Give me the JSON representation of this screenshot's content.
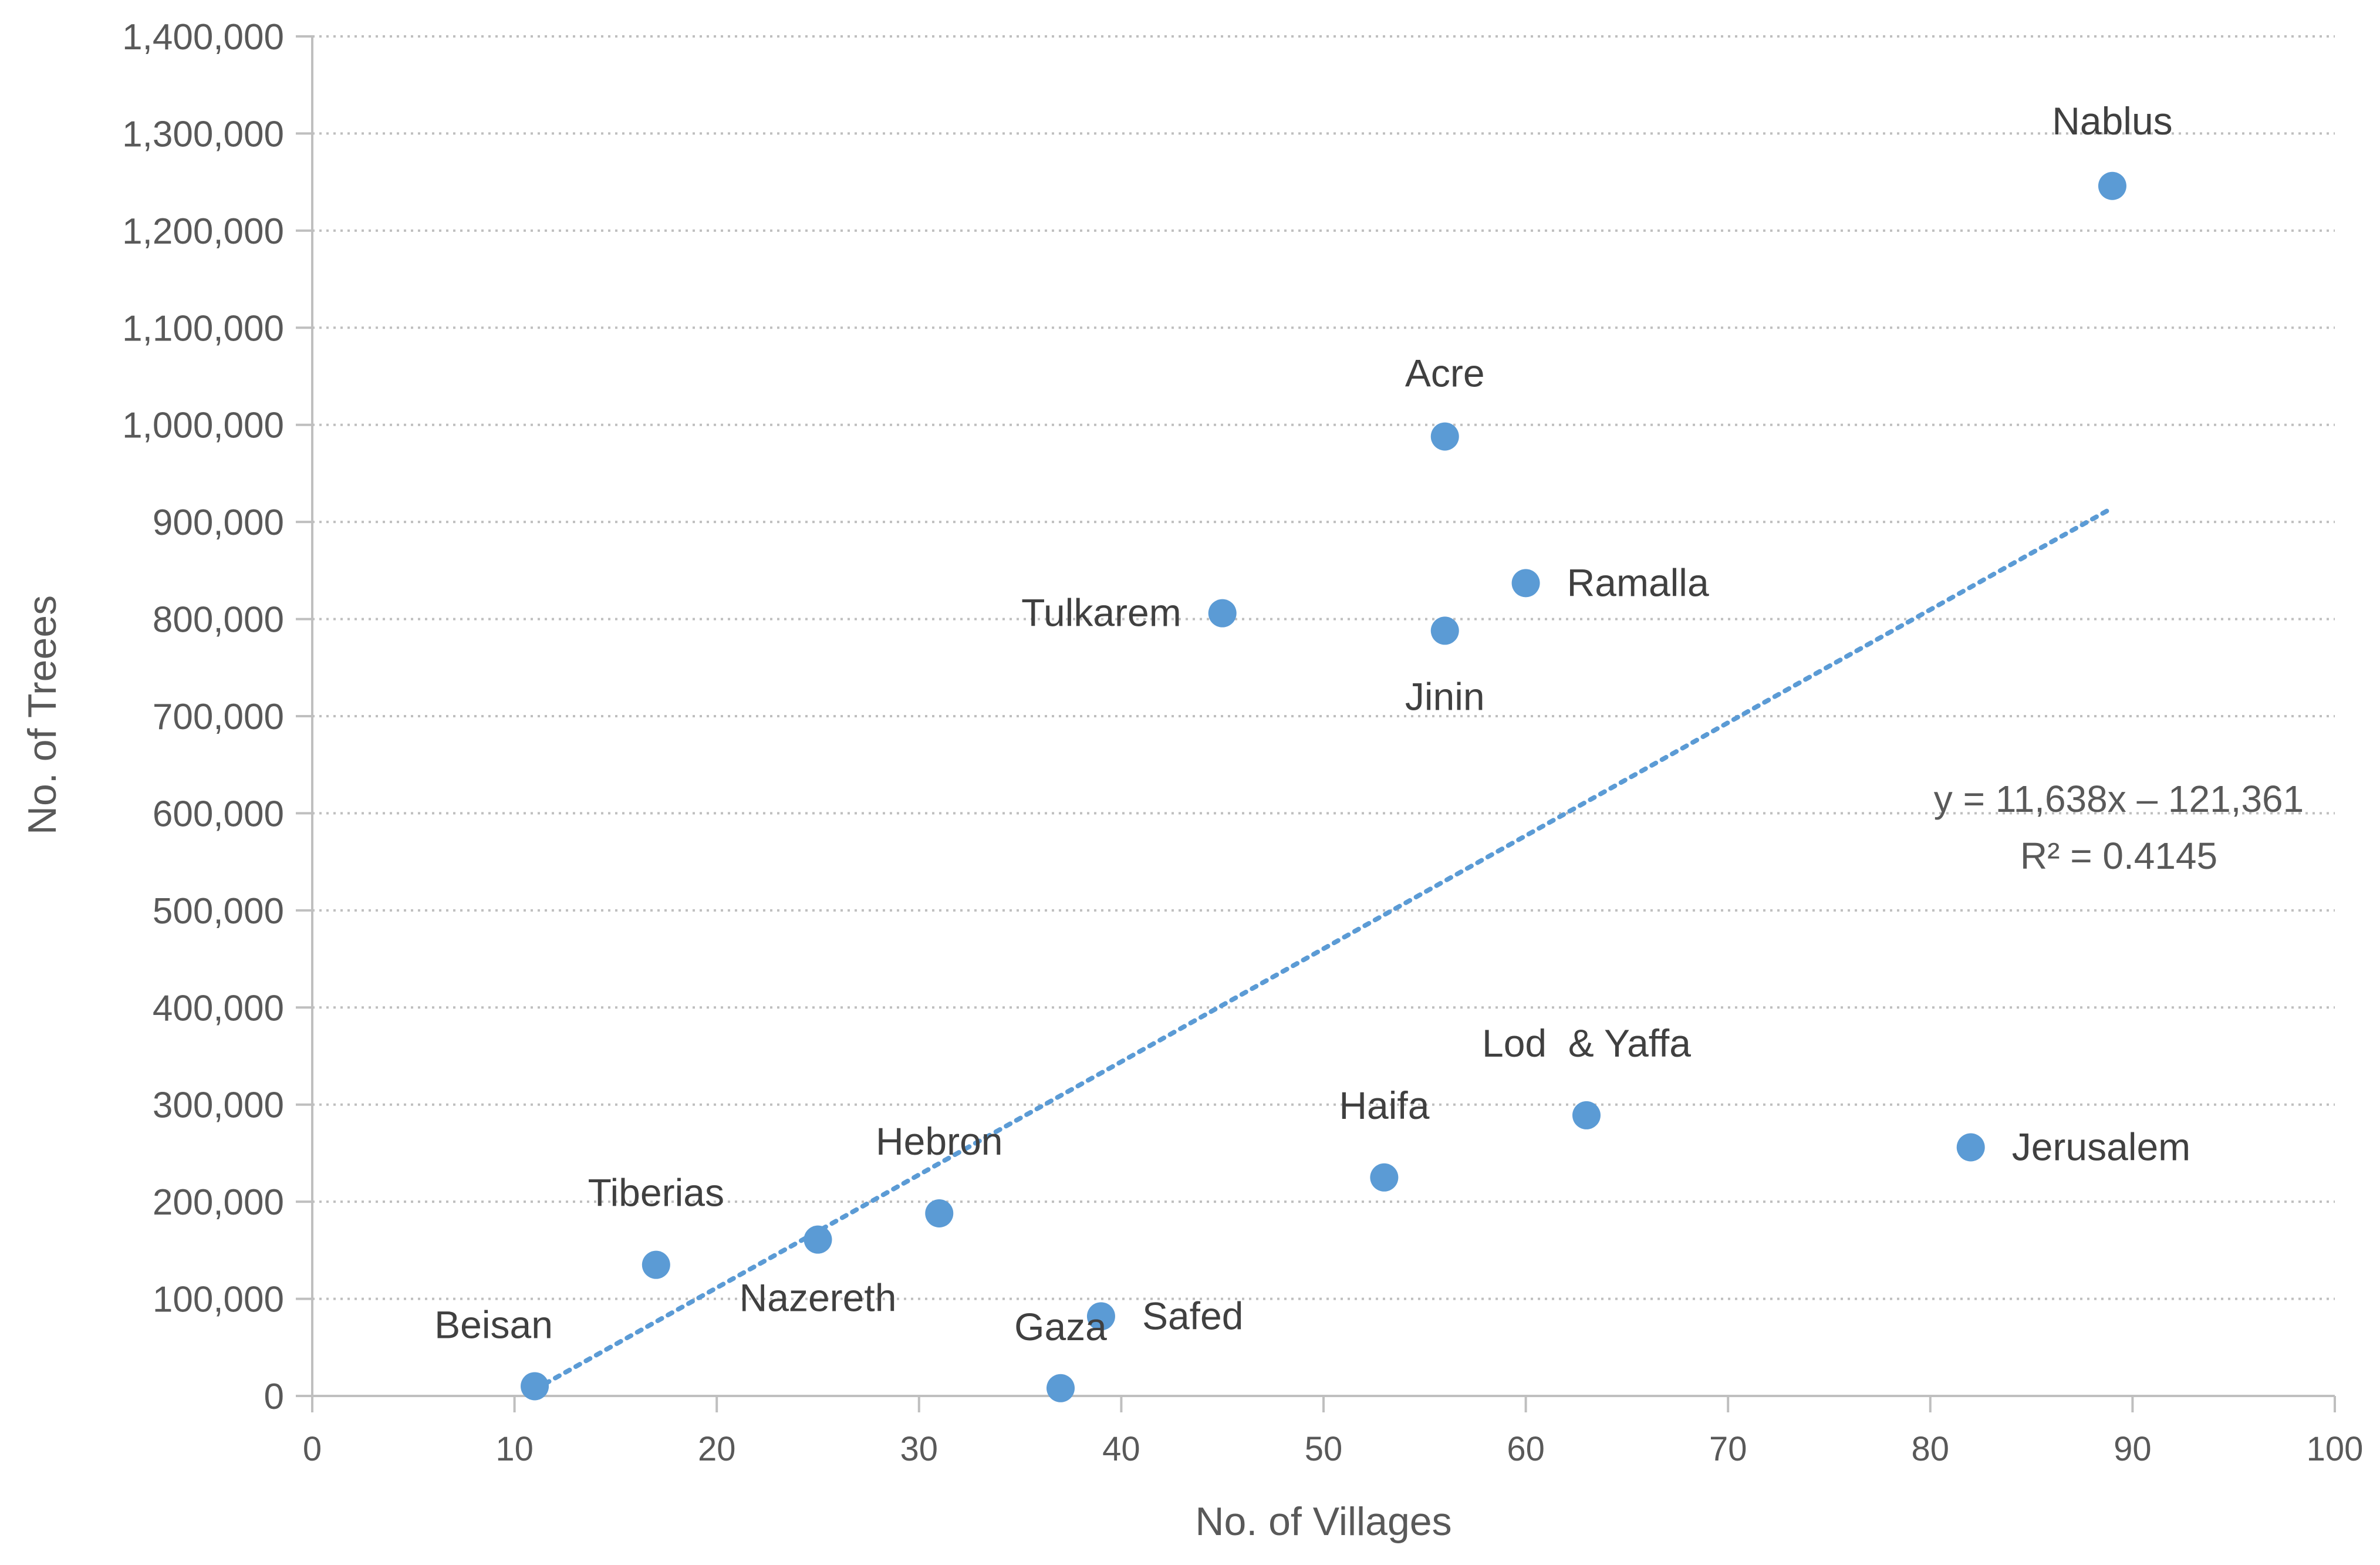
{
  "chart_data": {
    "type": "scatter",
    "title": "",
    "xlabel": "No. of Villages",
    "ylabel": "No. of  Treees",
    "xlim": [
      0,
      100
    ],
    "ylim": [
      0,
      1400000
    ],
    "x_ticks": [
      0,
      10,
      20,
      30,
      40,
      50,
      60,
      70,
      80,
      90,
      100
    ],
    "x_tick_labels": [
      "0",
      "10",
      "20",
      "30",
      "40",
      "50",
      "60",
      "70",
      "80",
      "90",
      "100"
    ],
    "y_ticks": [
      0,
      100000,
      200000,
      300000,
      400000,
      500000,
      600000,
      700000,
      800000,
      900000,
      1000000,
      1100000,
      1200000,
      1300000,
      1400000
    ],
    "y_tick_labels": [
      "0",
      "100,000",
      "200,000",
      "300,000",
      "400,000",
      "500,000",
      "600,000",
      "700,000",
      "800,000",
      "900,000",
      "1,000,000",
      "1,100,000",
      "1,200,000",
      "1,300,000",
      "1,400,000"
    ],
    "grid": "horizontal dotted",
    "point_color": "#5b9bd5",
    "trendline_color": "#5b9bd5",
    "points": [
      {
        "label": "Beisan",
        "x": 11,
        "y": 10000
      },
      {
        "label": "Tiberias",
        "x": 17,
        "y": 135000
      },
      {
        "label": "Nazereth",
        "x": 25,
        "y": 161000
      },
      {
        "label": "Hebron",
        "x": 31,
        "y": 188000
      },
      {
        "label": "Gaza",
        "x": 37,
        "y": 8000
      },
      {
        "label": "Safed",
        "x": 39,
        "y": 82000
      },
      {
        "label": "Tulkarem",
        "x": 45,
        "y": 806000
      },
      {
        "label": "Haifa",
        "x": 53,
        "y": 225000
      },
      {
        "label": "Acre",
        "x": 56,
        "y": 988000
      },
      {
        "label": "Jinin",
        "x": 56,
        "y": 788000
      },
      {
        "label": "Ramalla",
        "x": 60,
        "y": 837000
      },
      {
        "label": "Lod  & Yaffa",
        "x": 63,
        "y": 289000
      },
      {
        "label": "Jerusalem",
        "x": 82,
        "y": 256000
      },
      {
        "label": "Nablus",
        "x": 89,
        "y": 1246000
      }
    ],
    "trendline": {
      "type": "linear",
      "x_range": [
        11,
        89
      ],
      "slope": 11638,
      "intercept": -121361,
      "equation": "y = 11,638x – 121,361",
      "r_squared": "R² = 0.4145"
    }
  }
}
